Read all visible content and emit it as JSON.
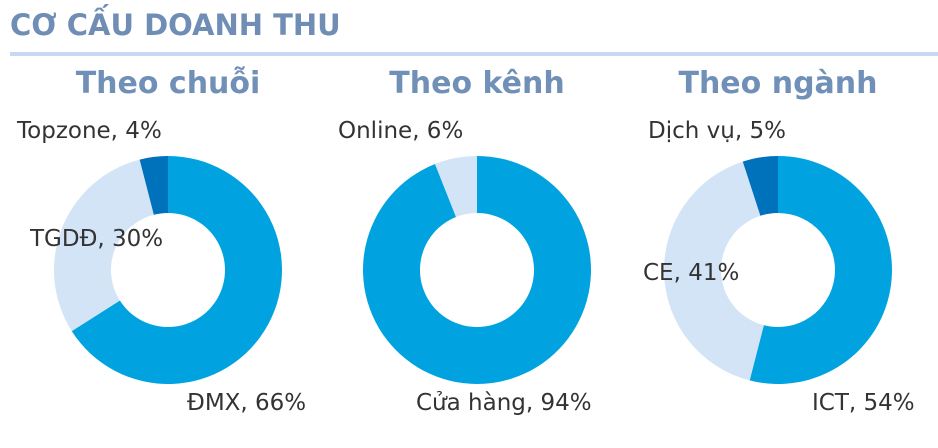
{
  "title": "CƠ CẤU DOANH THU",
  "colors": {
    "main": "#00a3e0",
    "light": "#d3e4f7",
    "dark": "#0071bb"
  },
  "chart_data": [
    {
      "type": "pie",
      "subtype": "donut",
      "title": "Theo chuỗi",
      "slices": [
        {
          "label": "ĐMX, 66%",
          "name": "ĐMX",
          "value": 66,
          "color": "#00a3e0"
        },
        {
          "label": "TGDĐ, 30%",
          "name": "TGDĐ",
          "value": 30,
          "color": "#d3e4f7"
        },
        {
          "label": "Topzone, 4%",
          "name": "Topzone",
          "value": 4,
          "color": "#0071bb"
        }
      ]
    },
    {
      "type": "pie",
      "subtype": "donut",
      "title": "Theo kênh",
      "slices": [
        {
          "label": "Cửa hàng, 94%",
          "name": "Cửa hàng",
          "value": 94,
          "color": "#00a3e0"
        },
        {
          "label": "Online, 6%",
          "name": "Online",
          "value": 6,
          "color": "#d3e4f7"
        }
      ]
    },
    {
      "type": "pie",
      "subtype": "donut",
      "title": "Theo ngành",
      "slices": [
        {
          "label": "ICT, 54%",
          "name": "ICT",
          "value": 54,
          "color": "#00a3e0"
        },
        {
          "label": "CE, 41%",
          "name": "CE",
          "value": 41,
          "color": "#d3e4f7"
        },
        {
          "label": "Dịch vụ, 5%",
          "name": "Dịch vụ",
          "value": 5,
          "color": "#0071bb"
        }
      ]
    }
  ]
}
